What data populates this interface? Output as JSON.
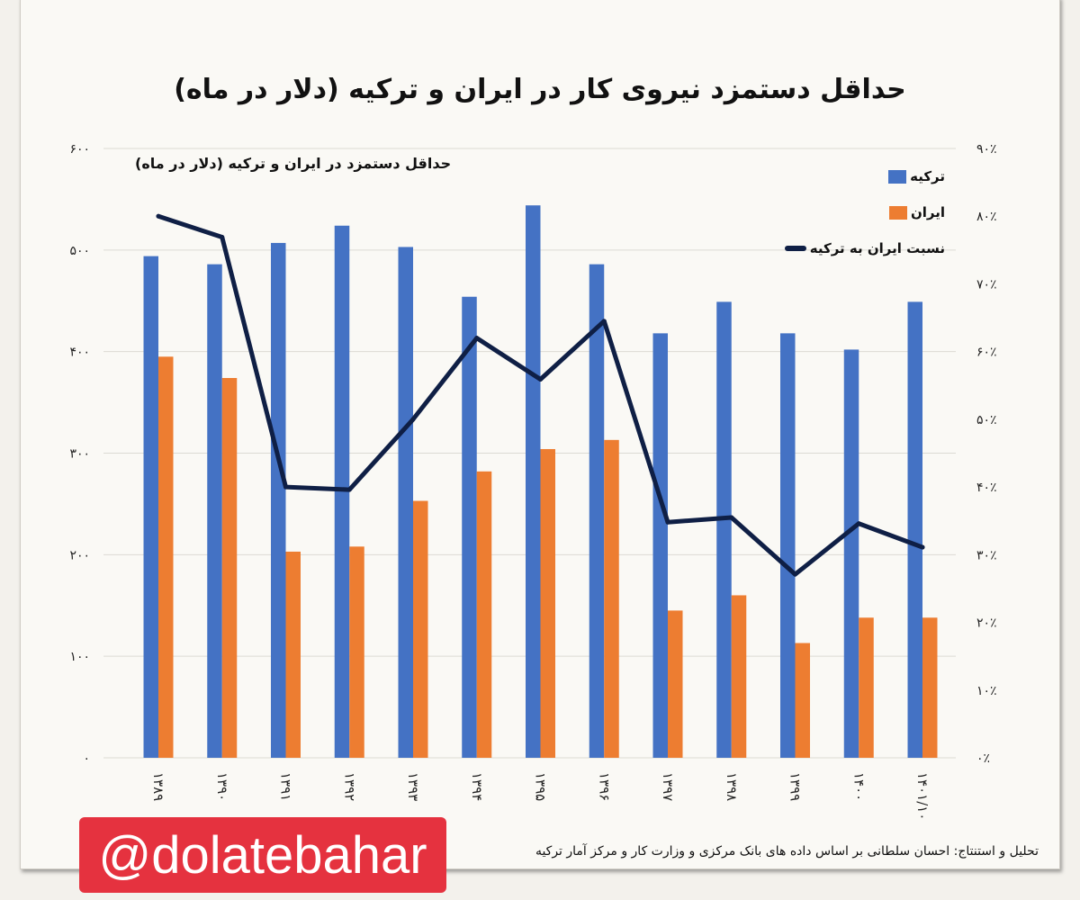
{
  "chart_data": {
    "type": "bar",
    "title": "حداقل دستمزد نیروی کار در ایران و ترکیه (دلار در ماه)",
    "subtitle": "حداقل دستمزد در ایران و ترکیه (دلار در ماه)",
    "categories": [
      "۱۳۸۹",
      "۱۳۹۰",
      "۱۳۹۱",
      "۱۳۹۲",
      "۱۳۹۳",
      "۱۳۹۴",
      "۱۳۹۵",
      "۱۳۹۶",
      "۱۳۹۷",
      "۱۳۹۸",
      "۱۳۹۹",
      "۱۴۰۰",
      "۱۴۰۱/۱۰"
    ],
    "series": [
      {
        "name": "ترکیه",
        "type": "bar",
        "axis": "left",
        "color": "#4472c4",
        "values": [
          494,
          486,
          507,
          524,
          503,
          454,
          544,
          486,
          418,
          449,
          418,
          402,
          449
        ]
      },
      {
        "name": "ایران",
        "type": "bar",
        "axis": "left",
        "color": "#ed7d31",
        "values": [
          395,
          374,
          203,
          208,
          253,
          282,
          304,
          313,
          145,
          160,
          113,
          138,
          138
        ]
      },
      {
        "name": "نسبت ایران به ترکیه",
        "type": "line",
        "axis": "right",
        "color": "#0f1f45",
        "values": [
          80,
          76.9,
          40,
          39.6,
          50,
          62,
          55.9,
          64.5,
          34.8,
          35.5,
          27.1,
          34.6,
          31.1
        ]
      }
    ],
    "y_left": {
      "range": [
        0,
        600
      ],
      "ticks": [
        "۰",
        "۱۰۰",
        "۲۰۰",
        "۳۰۰",
        "۴۰۰",
        "۵۰۰",
        "۶۰۰"
      ]
    },
    "y_right": {
      "range": [
        0,
        90
      ],
      "unit": "%",
      "ticks": [
        "۰٪",
        "۱۰٪",
        "۲۰٪",
        "۳۰٪",
        "۴۰٪",
        "۵۰٪",
        "۶۰٪",
        "۷۰٪",
        "۸۰٪",
        "۹۰٪"
      ]
    },
    "grid": true,
    "legend_position": "top-right"
  },
  "footer": "تحلیل و استنتاج: احسان سلطانی بر اساس داده های بانک مرکزی و وزارت کار و مرکز آمار ترکیه",
  "watermark": "@dolatebahar"
}
